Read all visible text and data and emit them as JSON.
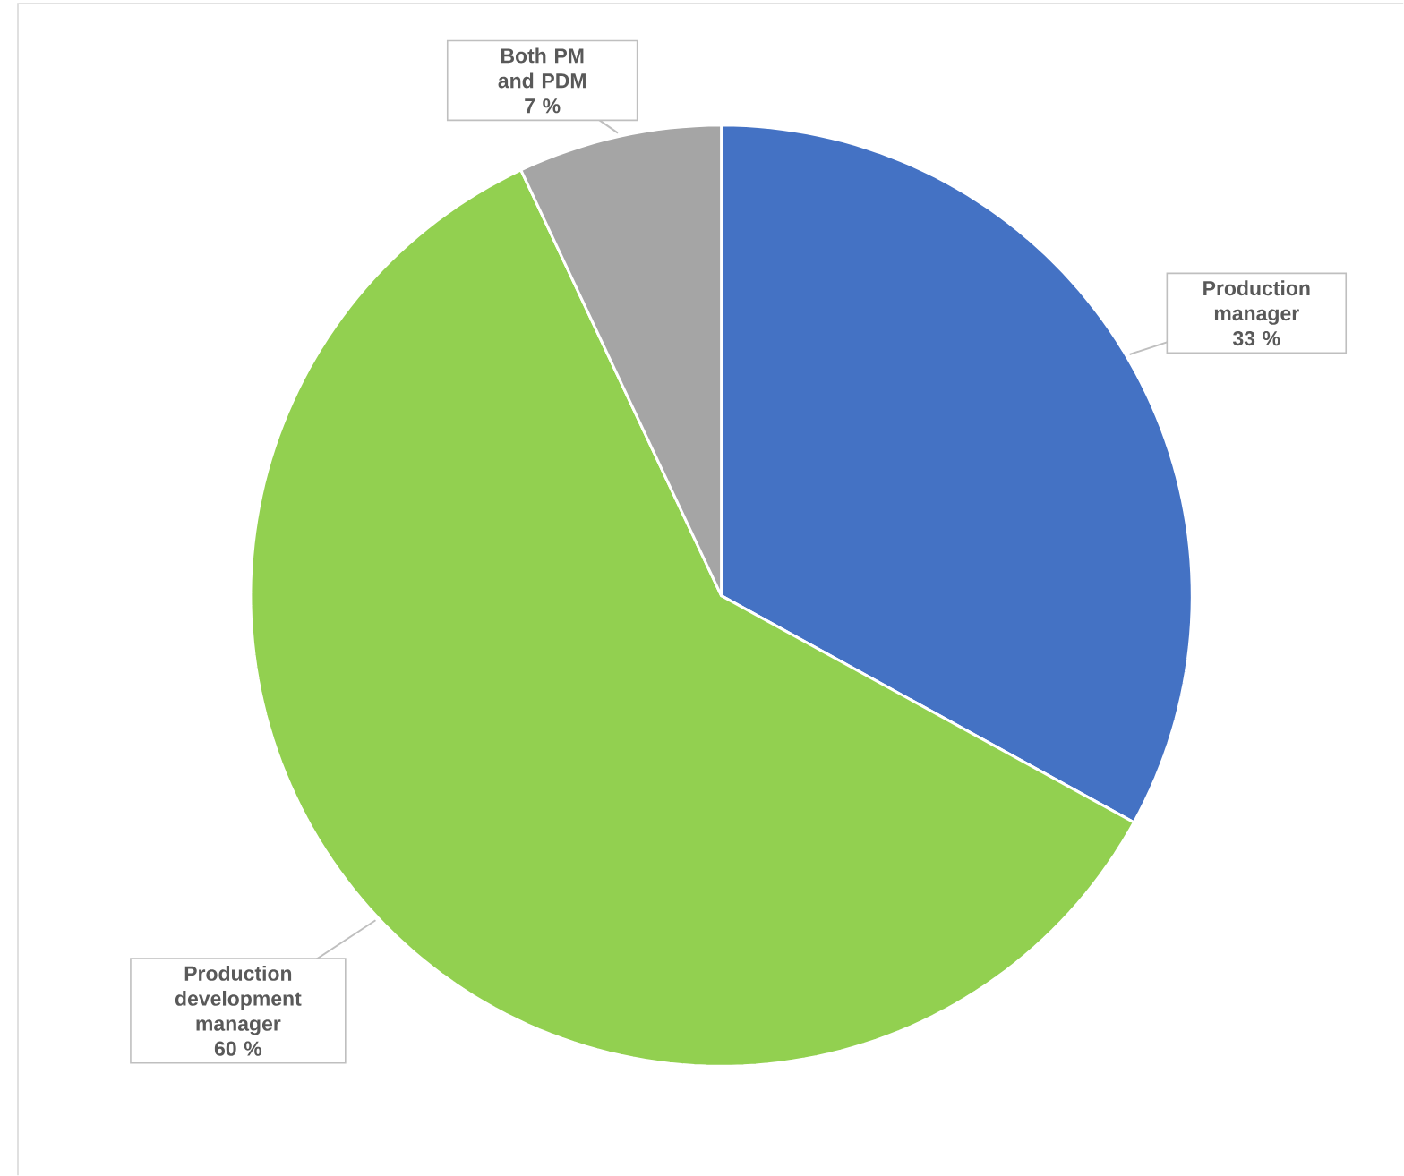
{
  "chart_data": {
    "type": "pie",
    "categories": [
      "Production manager",
      "Production development manager",
      "Both PM and PDM"
    ],
    "values": [
      33,
      60,
      7
    ],
    "colors": [
      "#4472c4",
      "#92d050",
      "#a5a5a5"
    ],
    "value_labels": [
      "33 %",
      "60 %",
      "7 %"
    ]
  }
}
